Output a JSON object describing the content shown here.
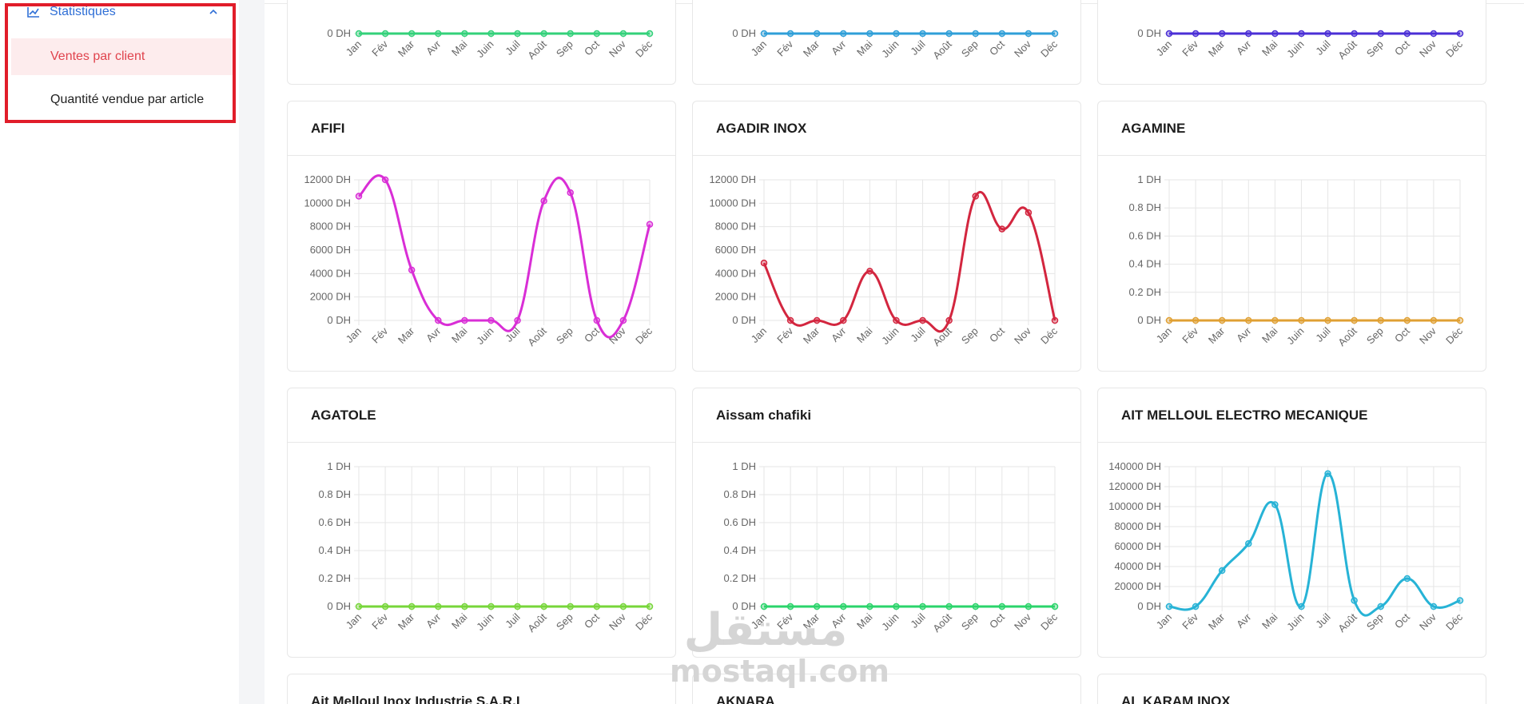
{
  "sidebar": {
    "section": {
      "label": "Statistiques",
      "icon": "line-chart-icon",
      "expanded_icon": "chevron-up-icon"
    },
    "items": [
      {
        "label": "Ventes par client",
        "active": true
      },
      {
        "label": "Quantité vendue par article",
        "active": false
      }
    ],
    "colors": {
      "accent": "#2f6fd6",
      "active_text": "#e0434d",
      "active_bg": "#fdeced",
      "highlight": "#e11d2a"
    }
  },
  "charts": [
    {
      "title": "",
      "color": "#33d17a",
      "yticks": [
        "0 DH"
      ],
      "values": [
        0,
        0,
        0,
        0,
        0,
        0,
        0,
        0,
        0,
        0,
        0,
        0
      ]
    },
    {
      "title": "",
      "color": "#2f9fd8",
      "yticks": [
        "0 DH"
      ],
      "values": [
        0,
        0,
        0,
        0,
        0,
        0,
        0,
        0,
        0,
        0,
        0,
        0
      ]
    },
    {
      "title": "",
      "color": "#4b2fd6",
      "yticks": [
        "0 DH"
      ],
      "values": [
        0,
        0,
        0,
        0,
        0,
        0,
        0,
        0,
        0,
        0,
        0,
        0
      ]
    },
    {
      "title": "AFIFI",
      "color": "#d92ed6",
      "yticks": [
        "12000 DH",
        "10000 DH",
        "8000 DH",
        "6000 DH",
        "4000 DH",
        "2000 DH",
        "0 DH"
      ],
      "ymax": 12000,
      "values": [
        10600,
        12000,
        4300,
        0,
        0,
        0,
        0,
        10200,
        10900,
        0,
        0,
        8200
      ]
    },
    {
      "title": "AGADIR INOX",
      "color": "#d3263f",
      "yticks": [
        "12000 DH",
        "10000 DH",
        "8000 DH",
        "6000 DH",
        "4000 DH",
        "2000 DH",
        "0 DH"
      ],
      "ymax": 12000,
      "values": [
        4900,
        0,
        0,
        0,
        4200,
        0,
        0,
        0,
        10600,
        7800,
        9200,
        0
      ]
    },
    {
      "title": "AGAMINE",
      "color": "#e0a033",
      "yticks": [
        "1 DH",
        "0.8 DH",
        "0.6 DH",
        "0.4 DH",
        "0.2 DH",
        "0 DH"
      ],
      "ymax": 1,
      "values": [
        0,
        0,
        0,
        0,
        0,
        0,
        0,
        0,
        0,
        0,
        0,
        0
      ]
    },
    {
      "title": "AGATOLE",
      "color": "#77d63a",
      "yticks": [
        "1 DH",
        "0.8 DH",
        "0.6 DH",
        "0.4 DH",
        "0.2 DH",
        "0 DH"
      ],
      "ymax": 1,
      "values": [
        0,
        0,
        0,
        0,
        0,
        0,
        0,
        0,
        0,
        0,
        0,
        0
      ]
    },
    {
      "title": "Aissam chafiki",
      "color": "#2bd46b",
      "yticks": [
        "1 DH",
        "0.8 DH",
        "0.6 DH",
        "0.4 DH",
        "0.2 DH",
        "0 DH"
      ],
      "ymax": 1,
      "values": [
        0,
        0,
        0,
        0,
        0,
        0,
        0,
        0,
        0,
        0,
        0,
        0
      ]
    },
    {
      "title": "AIT MELLOUL ELECTRO MECANIQUE",
      "color": "#27b3d6",
      "yticks": [
        "140000 DH",
        "120000 DH",
        "100000 DH",
        "80000 DH",
        "60000 DH",
        "40000 DH",
        "20000 DH",
        "0 DH"
      ],
      "ymax": 140000,
      "values": [
        0,
        0,
        36000,
        63000,
        102000,
        0,
        133000,
        6000,
        0,
        28000,
        0,
        6000
      ]
    },
    {
      "title": "Ait Melloul Inox Industrie S.A.R.L",
      "color": "#999999",
      "yticks": [],
      "values": []
    },
    {
      "title": "AKNARA",
      "color": "#999999",
      "yticks": [],
      "values": []
    },
    {
      "title": "AL KARAM INOX",
      "color": "#999999",
      "yticks": [],
      "values": []
    }
  ],
  "months": [
    "Jan",
    "Fév",
    "Mar",
    "Avr",
    "Mai",
    "Juin",
    "Juil",
    "Août",
    "Sep",
    "Oct",
    "Nov",
    "Déc"
  ],
  "watermark": {
    "arabic": "مستقل",
    "latin": "mostaql.com"
  }
}
